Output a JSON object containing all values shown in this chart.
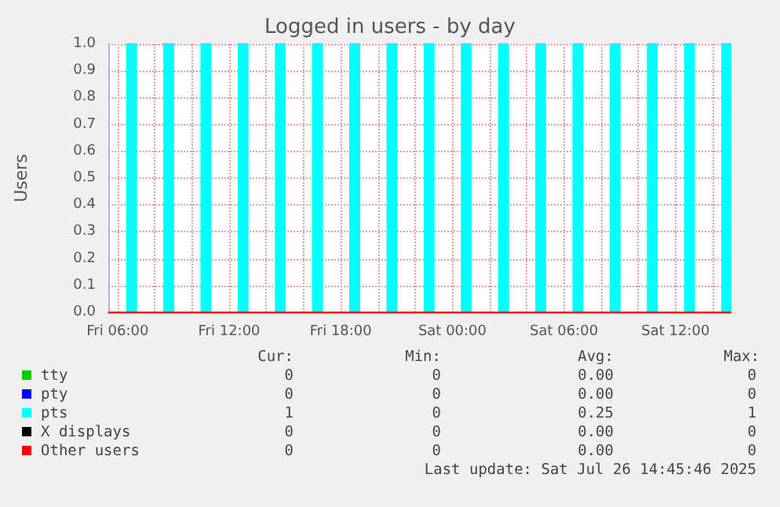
{
  "chart_data": {
    "type": "line",
    "title": "Logged in users - by day",
    "ylabel": "Users",
    "xlim": [
      "2025-07-25T05:30",
      "2025-07-26T15:00"
    ],
    "xticks": [
      {
        "value": "2025-07-25T06:00",
        "label": "Fri 06:00"
      },
      {
        "value": "2025-07-25T08:00",
        "label": null
      },
      {
        "value": "2025-07-25T10:00",
        "label": null
      },
      {
        "value": "2025-07-25T12:00",
        "label": "Fri 12:00"
      },
      {
        "value": "2025-07-25T14:00",
        "label": null
      },
      {
        "value": "2025-07-25T16:00",
        "label": null
      },
      {
        "value": "2025-07-25T18:00",
        "label": "Fri 18:00"
      },
      {
        "value": "2025-07-25T20:00",
        "label": null
      },
      {
        "value": "2025-07-25T22:00",
        "label": null
      },
      {
        "value": "2025-07-26T00:00",
        "label": "Sat 00:00"
      },
      {
        "value": "2025-07-26T02:00",
        "label": null
      },
      {
        "value": "2025-07-26T04:00",
        "label": null
      },
      {
        "value": "2025-07-26T06:00",
        "label": "Sat 06:00"
      },
      {
        "value": "2025-07-26T08:00",
        "label": null
      },
      {
        "value": "2025-07-26T10:00",
        "label": null
      },
      {
        "value": "2025-07-26T12:00",
        "label": "Sat 12:00"
      },
      {
        "value": "2025-07-26T14:00",
        "label": null
      }
    ],
    "ylim": [
      0,
      1
    ],
    "yticks": [
      {
        "value": 0,
        "label": "0.0"
      },
      0.1,
      0.2,
      0.3,
      0.4,
      0.5,
      0.6,
      0.7,
      0.8,
      0.9,
      {
        "value": 1,
        "label": "1.0"
      }
    ],
    "grid": true,
    "legend": "bottom",
    "line_style": "solid",
    "series": [
      {
        "name": "tty",
        "color": "#00cc00"
      },
      {
        "name": "pty",
        "color": "#0000ff"
      },
      {
        "name": "pts",
        "color": "#00ffff",
        "type": "area",
        "x": [
          "2025-07-25T05:30",
          "2025-07-25T06:30",
          "2025-07-25T06:30",
          "2025-07-25T07:00",
          "2025-07-25T07:00",
          "2025-07-25T08:30",
          "2025-07-25T08:30",
          "2025-07-25T09:00",
          "2025-07-25T09:00",
          "2025-07-25T10:30",
          "2025-07-25T10:30",
          "2025-07-25T11:00",
          "2025-07-25T11:00",
          "2025-07-25T12:30",
          "2025-07-25T12:30",
          "2025-07-25T13:00",
          "2025-07-25T13:00",
          "2025-07-25T14:30",
          "2025-07-25T14:30",
          "2025-07-25T15:00",
          "2025-07-25T15:00",
          "2025-07-25T16:30",
          "2025-07-25T16:30",
          "2025-07-25T17:00",
          "2025-07-25T17:00",
          "2025-07-25T18:30",
          "2025-07-25T18:30",
          "2025-07-25T19:00",
          "2025-07-25T19:00",
          "2025-07-25T20:30",
          "2025-07-25T20:30",
          "2025-07-25T21:00",
          "2025-07-25T21:00",
          "2025-07-25T22:30",
          "2025-07-25T22:30",
          "2025-07-25T23:00",
          "2025-07-25T23:00",
          "2025-07-26T00:30",
          "2025-07-26T00:30",
          "2025-07-26T01:00",
          "2025-07-26T01:00",
          "2025-07-26T02:30",
          "2025-07-26T02:30",
          "2025-07-26T03:00",
          "2025-07-26T03:00",
          "2025-07-26T04:30",
          "2025-07-26T04:30",
          "2025-07-26T05:00",
          "2025-07-26T05:00",
          "2025-07-26T06:30",
          "2025-07-26T06:30",
          "2025-07-26T07:00",
          "2025-07-26T07:00",
          "2025-07-26T08:30",
          "2025-07-26T08:30",
          "2025-07-26T09:00",
          "2025-07-26T09:00",
          "2025-07-26T10:30",
          "2025-07-26T10:30",
          "2025-07-26T11:00",
          "2025-07-26T11:00",
          "2025-07-26T12:30",
          "2025-07-26T12:30",
          "2025-07-26T13:00",
          "2025-07-26T13:00",
          "2025-07-26T14:30",
          "2025-07-26T14:30",
          "2025-07-26T15:00"
        ],
        "values": [
          0,
          0,
          1,
          1,
          0,
          0,
          1,
          1,
          0,
          0,
          1,
          1,
          0,
          0,
          1,
          1,
          0,
          0,
          1,
          1,
          0,
          0,
          1,
          1,
          0,
          0,
          1,
          1,
          0,
          0,
          1,
          1,
          0,
          0,
          1,
          1,
          0,
          0,
          1,
          1,
          0,
          0,
          1,
          1,
          0,
          0,
          1,
          1,
          0,
          0,
          1,
          1,
          0,
          0,
          1,
          1,
          0,
          0,
          1,
          1,
          0,
          0,
          1,
          1,
          0,
          0,
          1,
          1
        ]
      },
      {
        "name": "X displays",
        "color": "#000000"
      },
      {
        "name": "Other users",
        "color": "#ff0000",
        "x": [
          "2025-07-25T05:30",
          "2025-07-26T15:00"
        ],
        "values": [
          0,
          0
        ]
      }
    ],
    "annotations": [
      "Cur:",
      "Min:",
      "Avg:",
      "Max:",
      "0",
      "0",
      "0.00",
      "0",
      "0",
      "0",
      "0.00",
      "0",
      "1",
      "0",
      "0.25",
      "1",
      "0",
      "0",
      "0.00",
      "0",
      "0",
      "0",
      "0.00",
      "0",
      "Last update: Sat Jul 26 14:45:46 2025"
    ]
  }
}
